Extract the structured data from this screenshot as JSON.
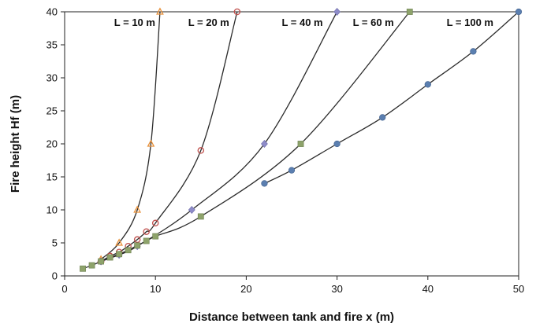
{
  "chart_data": {
    "type": "line",
    "title": "",
    "xlabel": "Distance between tank and fire x (m)",
    "ylabel": "Fire height Hf (m)",
    "xlim": [
      0,
      50
    ],
    "ylim": [
      0,
      40
    ],
    "xticks": [
      "0",
      "10",
      "20",
      "30",
      "40",
      "50"
    ],
    "yticks": [
      "0",
      "5",
      "10",
      "15",
      "20",
      "25",
      "30",
      "35",
      "40"
    ],
    "grid": false,
    "legend": "none",
    "line_color": "#2b2b2b",
    "series": [
      {
        "name": "L = 10 m",
        "marker": "triangle",
        "color": "#e8913a",
        "x": [
          4,
          6,
          8,
          9.5,
          10.5
        ],
        "y": [
          2.5,
          5,
          10,
          20,
          40
        ]
      },
      {
        "name": "L = 20 m",
        "marker": "circle-open",
        "color": "#c0504d",
        "x": [
          4,
          5,
          6,
          7,
          8,
          9,
          10,
          15,
          19
        ],
        "y": [
          2.2,
          3,
          3.6,
          4.5,
          5.5,
          6.7,
          8,
          19,
          40
        ]
      },
      {
        "name": "L = 40 m",
        "marker": "diamond",
        "color": "#8e8cc9",
        "x": [
          4,
          6,
          8,
          14,
          22,
          30
        ],
        "y": [
          2.2,
          3.2,
          4.5,
          10,
          20,
          40
        ]
      },
      {
        "name": "L = 60 m",
        "marker": "square",
        "color": "#8ea36b",
        "x": [
          2,
          3,
          4,
          5,
          6,
          7,
          8,
          9,
          10,
          15,
          26,
          38
        ],
        "y": [
          1.1,
          1.6,
          2.2,
          2.8,
          3.3,
          3.9,
          4.6,
          5.3,
          6,
          9,
          20,
          40
        ]
      },
      {
        "name": "L = 100 m",
        "marker": "circle",
        "color": "#5b7fb0",
        "x": [
          22,
          25,
          30,
          35,
          40,
          45,
          50
        ],
        "y": [
          14,
          16,
          20,
          24,
          29,
          34,
          40
        ]
      }
    ]
  }
}
